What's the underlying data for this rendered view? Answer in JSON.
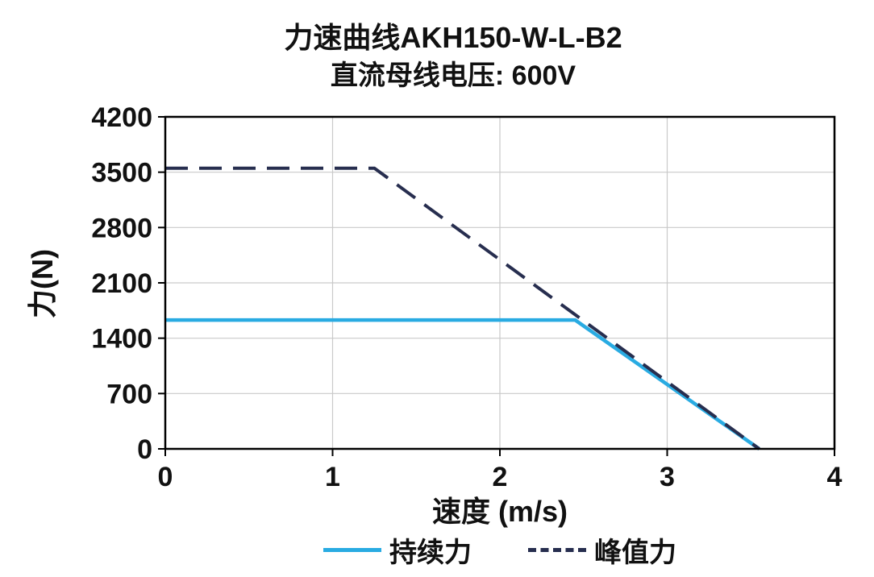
{
  "chart_data": {
    "type": "line",
    "title": "力速曲线AKH150-W-L-B2",
    "subtitle": "直流母线电压: 600V",
    "xlabel": "速度 (m/s)",
    "ylabel": "力(N)",
    "xlim": [
      0,
      4
    ],
    "ylim": [
      0,
      4200
    ],
    "xticks": [
      0,
      1,
      2,
      3,
      4
    ],
    "yticks": [
      0,
      700,
      1400,
      2100,
      2800,
      3500,
      4200
    ],
    "grid": true,
    "legend_position": "bottom",
    "colors": {
      "continuous": "#29ABE2",
      "peak": "#272E4F",
      "gridline": "#c9c9c9",
      "axis": "#000000",
      "text": "#111111"
    },
    "series": [
      {
        "name": "持续力",
        "style": "solid",
        "color": "#29ABE2",
        "points": [
          [
            0,
            1630
          ],
          [
            2.45,
            1630
          ],
          [
            3.55,
            0
          ]
        ]
      },
      {
        "name": "峰值力",
        "style": "dashed",
        "color": "#272E4F",
        "points": [
          [
            0,
            3550
          ],
          [
            1.25,
            3550
          ],
          [
            3.55,
            0
          ]
        ]
      }
    ]
  }
}
